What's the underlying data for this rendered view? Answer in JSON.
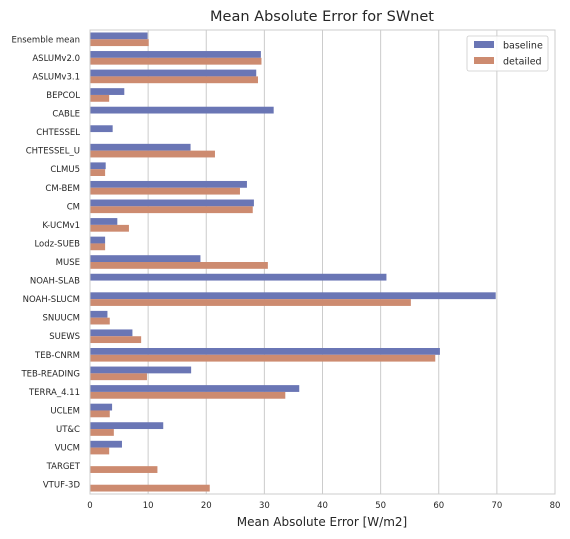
{
  "chart_data": {
    "type": "bar",
    "orientation": "horizontal",
    "title": "Mean Absolute Error for SWnet",
    "xlabel": "Mean Absolute Error [W/m2]",
    "ylabel": "",
    "xlim": [
      0,
      80
    ],
    "xticks": [
      "0",
      "10",
      "20",
      "30",
      "40",
      "50",
      "60",
      "70",
      "80"
    ],
    "grid": "vertical",
    "legend_position": "top-right",
    "categories": [
      "Ensemble mean",
      "ASLUMv2.0",
      "ASLUMv3.1",
      "BEPCOL",
      "CABLE",
      "CHTESSEL",
      "CHTESSEL_U",
      "CLMU5",
      "CM-BEM",
      "CM",
      "K-UCMv1",
      "Lodz-SUEB",
      "MUSE",
      "NOAH-SLAB",
      "NOAH-SLUCM",
      "SNUUCM",
      "SUEWS",
      "TEB-CNRM",
      "TEB-READING",
      "TERRA_4.11",
      "UCLEM",
      "UT&C",
      "VUCM",
      "TARGET",
      "VTUF-3D"
    ],
    "series": [
      {
        "name": "baseline",
        "color": "#6a76b5",
        "values": [
          9.9,
          29.4,
          28.6,
          5.9,
          31.6,
          3.9,
          17.3,
          2.7,
          27.0,
          28.2,
          4.7,
          2.6,
          19.0,
          51.0,
          69.8,
          3.0,
          7.3,
          60.2,
          17.4,
          36.0,
          3.8,
          12.6,
          5.5,
          null,
          null
        ]
      },
      {
        "name": "detailed",
        "color": "#cd8b70",
        "values": [
          10.1,
          29.5,
          28.9,
          3.3,
          null,
          null,
          21.5,
          2.6,
          25.8,
          28.0,
          6.7,
          2.6,
          30.6,
          null,
          55.2,
          3.4,
          8.8,
          59.4,
          9.8,
          33.6,
          3.4,
          4.1,
          3.3,
          11.6,
          20.6
        ]
      }
    ]
  }
}
